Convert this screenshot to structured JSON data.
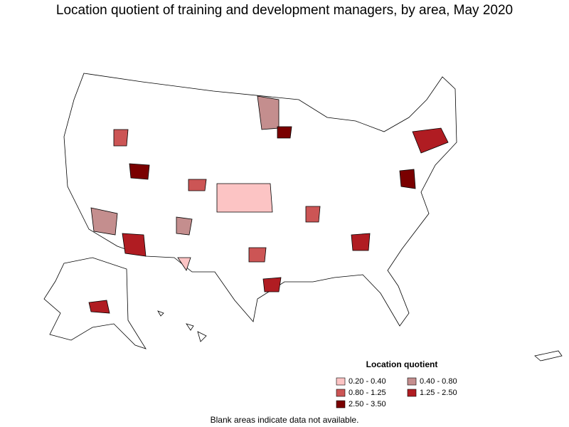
{
  "title": "Location quotient of training and development managers, by area, May 2020",
  "legend": {
    "title": "Location quotient",
    "entries": [
      {
        "label": "0.20 - 0.40",
        "color": "#fcc4c4"
      },
      {
        "label": "0.40 - 0.80",
        "color": "#c48e8e"
      },
      {
        "label": "0.80 - 1.25",
        "color": "#cc5555"
      },
      {
        "label": "1.25 - 2.50",
        "color": "#b01c22"
      },
      {
        "label": "2.50 - 3.50",
        "color": "#7a0000"
      }
    ]
  },
  "note": "Blank areas indicate data not available."
}
